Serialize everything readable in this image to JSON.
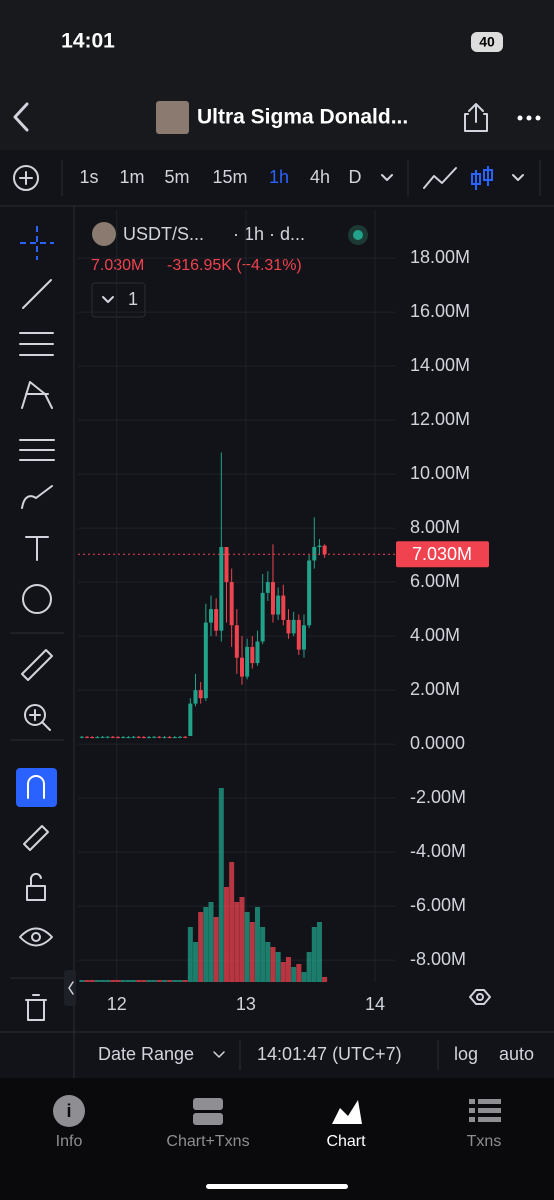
{
  "status_bar": {
    "time": "14:01",
    "battery": "40"
  },
  "header": {
    "title": "Ultra Sigma Donald..."
  },
  "intervals": [
    "1s",
    "1m",
    "5m",
    "15m",
    "1h",
    "4h",
    "D"
  ],
  "legend": {
    "symbol": "USDT/S...",
    "meta": "· 1h · d...",
    "change": "-316.95K (−4.31%)",
    "collapsed_count": "1"
  },
  "chart_data": {
    "type": "candlestick",
    "grid": true,
    "log_scale": false,
    "up_color": "#22a28a",
    "down_color": "#f0434f",
    "x": [
      11.73,
      11.77,
      11.81,
      11.85,
      11.89,
      11.93,
      11.97,
      12.01,
      12.05,
      12.09,
      12.13,
      12.17,
      12.21,
      12.25,
      12.29,
      12.33,
      12.37,
      12.41,
      12.45,
      12.49,
      12.53,
      12.57,
      12.61,
      12.65,
      12.69,
      12.73,
      12.77,
      12.81,
      12.85,
      12.89,
      12.93,
      12.97,
      13.01,
      13.05,
      13.09,
      13.13,
      13.17,
      13.21,
      13.25,
      13.29,
      13.33,
      13.37,
      13.41,
      13.45,
      13.49,
      13.53,
      13.57,
      13.61
    ],
    "open": [
      260000,
      270000,
      260000,
      250000,
      260000,
      270000,
      270000,
      260000,
      250000,
      260000,
      260000,
      270000,
      260000,
      250000,
      260000,
      270000,
      260000,
      260000,
      250000,
      260000,
      270000,
      300000,
      1500000,
      2000000,
      1700000,
      4500000,
      5000000,
      4200000,
      7300000,
      6000000,
      4400000,
      3200000,
      2500000,
      3600000,
      3000000,
      3800000,
      5600000,
      6000000,
      4800000,
      5500000,
      4600000,
      4100000,
      4600000,
      3500000,
      4400000,
      6800000,
      7300000,
      7350000
    ],
    "high": [
      300000,
      300000,
      300000,
      300000,
      300000,
      300000,
      300000,
      300000,
      300000,
      300000,
      300000,
      300000,
      300000,
      300000,
      300000,
      300000,
      300000,
      300000,
      300000,
      300000,
      300000,
      1700000,
      2600000,
      2300000,
      5200000,
      5500000,
      5400000,
      10800000,
      7300000,
      6500000,
      5000000,
      4000000,
      3900000,
      4000000,
      4200000,
      6300000,
      6400000,
      7400000,
      5800000,
      5900000,
      5000000,
      4900000,
      4800000,
      4800000,
      7000000,
      8400000,
      7600000,
      7400000
    ],
    "low": [
      220000,
      220000,
      220000,
      220000,
      220000,
      220000,
      220000,
      220000,
      220000,
      220000,
      220000,
      220000,
      220000,
      220000,
      220000,
      220000,
      220000,
      220000,
      220000,
      220000,
      220000,
      300000,
      1400000,
      1500000,
      1600000,
      4000000,
      4000000,
      3800000,
      4500000,
      3600000,
      2600000,
      2200000,
      2400000,
      2800000,
      2900000,
      3700000,
      5300000,
      4500000,
      4600000,
      4400000,
      3900000,
      4000000,
      3300000,
      3200000,
      4300000,
      6500000,
      7000000,
      6900000
    ],
    "close": [
      270000,
      260000,
      250000,
      260000,
      270000,
      270000,
      260000,
      250000,
      260000,
      260000,
      270000,
      260000,
      250000,
      260000,
      270000,
      260000,
      260000,
      250000,
      260000,
      270000,
      260000,
      1500000,
      2000000,
      1700000,
      4500000,
      5000000,
      4200000,
      7300000,
      6000000,
      4400000,
      3200000,
      2500000,
      3600000,
      3000000,
      3800000,
      5600000,
      6000000,
      4800000,
      5500000,
      4600000,
      4100000,
      4600000,
      3500000,
      4400000,
      6800000,
      7300000,
      7350000,
      7030000
    ],
    "volume": [
      2,
      2,
      2,
      2,
      2,
      2,
      2,
      2,
      2,
      2,
      2,
      2,
      2,
      2,
      2,
      2,
      2,
      2,
      2,
      2,
      2,
      55,
      40,
      70,
      75,
      80,
      65,
      194,
      95,
      120,
      80,
      85,
      70,
      60,
      75,
      55,
      40,
      35,
      30,
      20,
      25,
      15,
      18,
      10,
      30,
      55,
      60,
      5
    ],
    "last": {
      "value": 7030000,
      "label": "7.030M"
    },
    "xlim": [
      11.7,
      14.155
    ],
    "xticks": [
      12,
      13,
      14
    ],
    "ylim": [
      -8810000,
      19780000
    ],
    "yticks": [
      {
        "value": 18000000,
        "label": "18.00M"
      },
      {
        "value": 16000000,
        "label": "16.00M"
      },
      {
        "value": 14000000,
        "label": "14.00M"
      },
      {
        "value": 12000000,
        "label": "12.00M"
      },
      {
        "value": 10000000,
        "label": "10.00M"
      },
      {
        "value": 8000000,
        "label": "8.00M"
      },
      {
        "value": 6000000,
        "label": "6.00M"
      },
      {
        "value": 4000000,
        "label": "4.00M"
      },
      {
        "value": 2000000,
        "label": "2.00M"
      },
      {
        "value": 0,
        "label": "0.0000"
      },
      {
        "value": -2000000,
        "label": "-2.00M"
      },
      {
        "value": -4000000,
        "label": "-4.00M"
      },
      {
        "value": -6000000,
        "label": "-6.00M"
      },
      {
        "value": -8000000,
        "label": "-8.00M"
      }
    ]
  },
  "bottom_bar": {
    "date_range": "Date Range",
    "clock": "14:01:47 (UTC+7)",
    "log": "log",
    "auto": "auto"
  },
  "tabs": [
    "Info",
    "Chart+Txns",
    "Chart",
    "Txns"
  ]
}
